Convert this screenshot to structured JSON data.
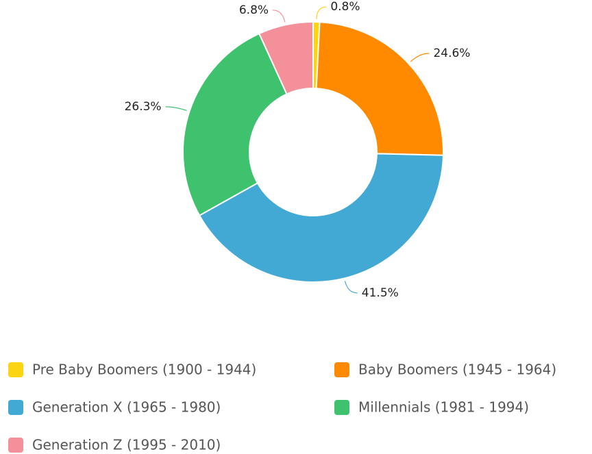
{
  "chart_data": {
    "type": "donut",
    "categories": [
      "Pre Baby Boomers (1900 - 1944)",
      "Baby Boomers (1945 - 1964)",
      "Generation X (1965 - 1980)",
      "Millennials (1981 - 1994)",
      "Generation Z (1995 - 2010)"
    ],
    "series": [
      {
        "values": [
          0.8,
          24.6,
          41.5,
          26.3,
          6.8
        ],
        "value_labels": [
          "0.8%",
          "24.6%",
          "41.5%",
          "26.3%",
          "6.8%"
        ],
        "colors": [
          "#fbd414",
          "#ff8a00",
          "#42a8d4",
          "#3ec26d",
          "#f4909a"
        ]
      }
    ],
    "legend": "bottom"
  }
}
